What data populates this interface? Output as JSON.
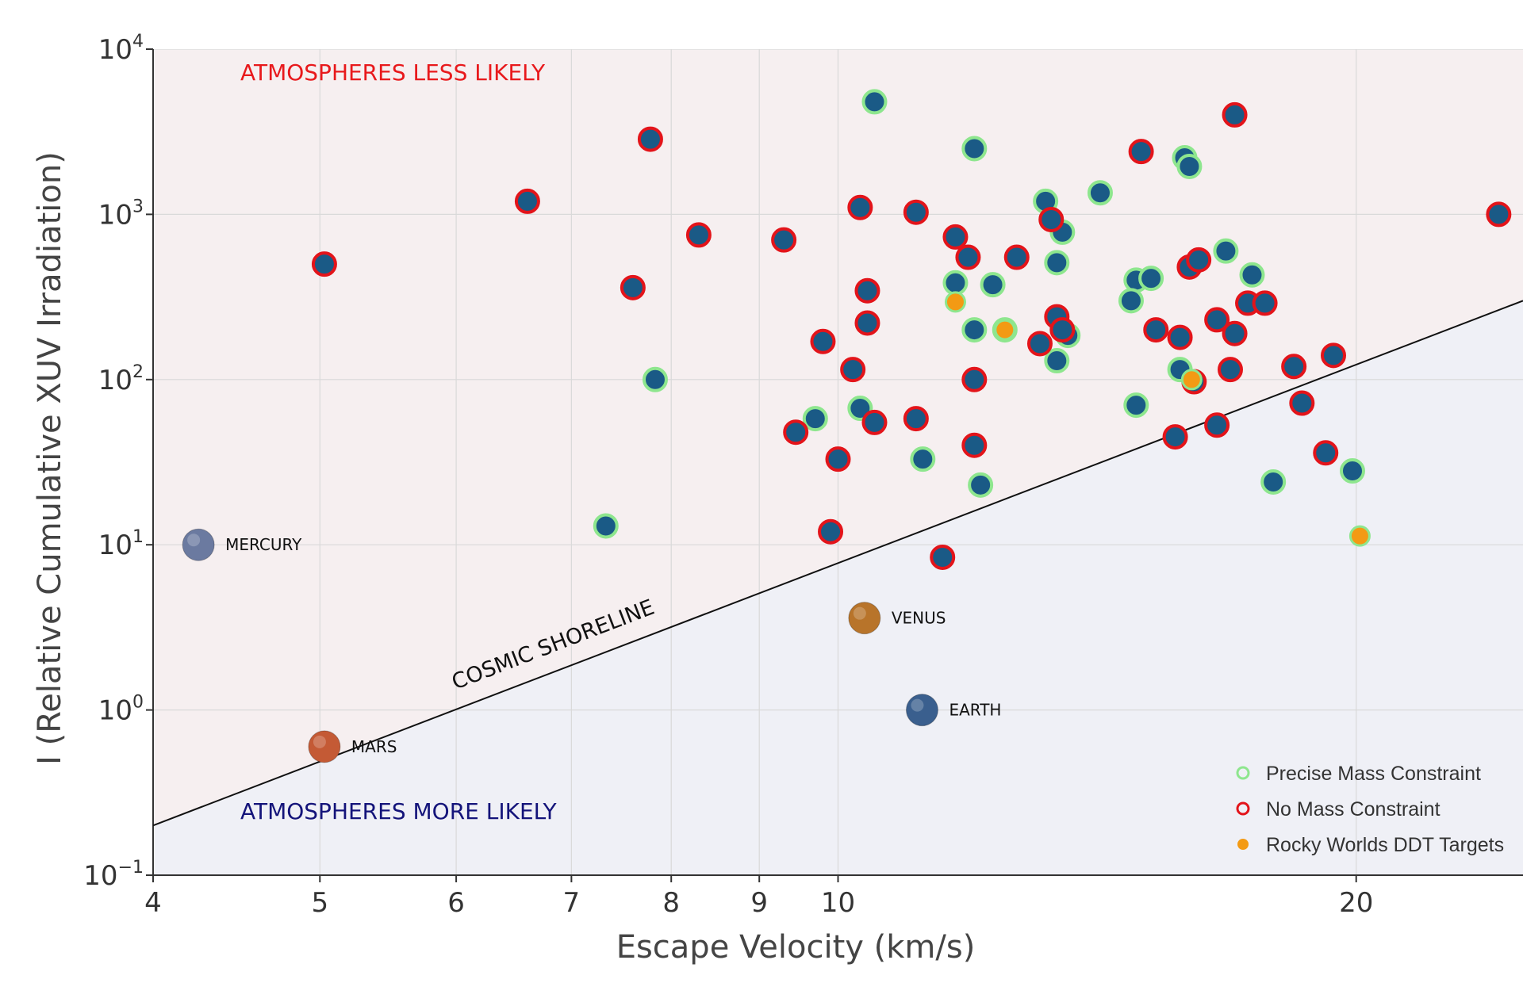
{
  "chart_data": {
    "type": "scatter",
    "xlabel": "Escape Velocity (km/s)",
    "ylabel": "I (Relative Cumulative XUV Irradiation)",
    "x_scale": "log",
    "y_scale": "log",
    "xlim": [
      4,
      25
    ],
    "ylim": [
      0.1,
      10000
    ],
    "x_ticks": [
      {
        "value": 4,
        "label": "4"
      },
      {
        "value": 5,
        "label": "5"
      },
      {
        "value": 6,
        "label": "6"
      },
      {
        "value": 7,
        "label": "7"
      },
      {
        "value": 8,
        "label": "8"
      },
      {
        "value": 9,
        "label": "9"
      },
      {
        "value": 10,
        "label": "10"
      },
      {
        "value": 20,
        "label": "20"
      }
    ],
    "y_ticks": [
      {
        "value": 0.1,
        "base": "10",
        "exp": "−1"
      },
      {
        "value": 1,
        "base": "10",
        "exp": "0"
      },
      {
        "value": 10,
        "base": "10",
        "exp": "1"
      },
      {
        "value": 100,
        "base": "10",
        "exp": "2"
      },
      {
        "value": 1000,
        "base": "10",
        "exp": "3"
      },
      {
        "value": 10000,
        "base": "10",
        "exp": "4"
      }
    ],
    "grid": true,
    "regions": {
      "upper_label": "ATMOSPHERES LESS LIKELY",
      "lower_label": "ATMOSPHERES MORE LIKELY",
      "upper_color": "#f6eff0",
      "lower_color": "#eff0f6",
      "upper_text_color": "#e8191c",
      "lower_text_color": "#14147a"
    },
    "shoreline": {
      "label": "COSMIC SHORELINE",
      "points": [
        [
          4,
          0.2
        ],
        [
          25,
          300
        ]
      ]
    },
    "solar_system": [
      {
        "name": "MERCURY",
        "x": 4.25,
        "y": 10,
        "color": "#6b7aa0"
      },
      {
        "name": "MARS",
        "x": 5.03,
        "y": 0.6,
        "color": "#c45a35"
      },
      {
        "name": "VENUS",
        "x": 10.36,
        "y": 3.6,
        "color": "#b8742a"
      },
      {
        "name": "EARTH",
        "x": 11.19,
        "y": 1.0,
        "color": "#3a5f8e"
      }
    ],
    "legend": {
      "placement": "bottom-right",
      "entries": [
        {
          "label": "Precise Mass Constraint",
          "type": "precise"
        },
        {
          "label": "No Mass Constraint",
          "type": "none"
        },
        {
          "label": "Rocky Worlds DDT Targets",
          "type": "ddt"
        }
      ]
    },
    "colors": {
      "fill": "#1a5a86",
      "precise_edge": "#8ee68e",
      "none_edge": "#e3141a",
      "ddt": "#f39a14"
    },
    "series": [
      {
        "name": "Precise Mass Constraint",
        "points": [
          [
            10.5,
            4800
          ],
          [
            12.0,
            2500
          ],
          [
            15.9,
            2200
          ],
          [
            16.0,
            1950
          ],
          [
            14.2,
            1350
          ],
          [
            13.2,
            1200
          ],
          [
            13.5,
            780
          ],
          [
            16.8,
            600
          ],
          [
            17.4,
            430
          ],
          [
            14.9,
            400
          ],
          [
            15.2,
            410
          ],
          [
            12.3,
            375
          ],
          [
            11.7,
            385
          ],
          [
            13.4,
            510
          ],
          [
            14.8,
            300
          ],
          [
            12.0,
            200
          ],
          [
            12.5,
            200
          ],
          [
            13.6,
            185
          ],
          [
            13.4,
            130
          ],
          [
            15.8,
            115
          ],
          [
            7.83,
            100
          ],
          [
            9.7,
            58
          ],
          [
            10.3,
            67
          ],
          [
            14.9,
            70
          ],
          [
            11.2,
            33
          ],
          [
            12.1,
            23
          ],
          [
            7.33,
            13
          ],
          [
            17.9,
            24
          ],
          [
            19.9,
            28
          ]
        ]
      },
      {
        "name": "No Mass Constraint",
        "points": [
          [
            17.0,
            4000
          ],
          [
            15.0,
            2400
          ],
          [
            7.78,
            2850
          ],
          [
            6.6,
            1200
          ],
          [
            5.03,
            500
          ],
          [
            8.3,
            750
          ],
          [
            9.3,
            700
          ],
          [
            10.3,
            1100
          ],
          [
            11.1,
            1030
          ],
          [
            11.7,
            730
          ],
          [
            13.3,
            930
          ],
          [
            11.9,
            550
          ],
          [
            12.7,
            550
          ],
          [
            7.6,
            360
          ],
          [
            10.4,
            345
          ],
          [
            10.4,
            220
          ],
          [
            16.0,
            480
          ],
          [
            16.2,
            530
          ],
          [
            17.3,
            290
          ],
          [
            17.7,
            290
          ],
          [
            13.4,
            240
          ],
          [
            13.5,
            200
          ],
          [
            15.3,
            200
          ],
          [
            13.1,
            165
          ],
          [
            9.8,
            170
          ],
          [
            15.8,
            180
          ],
          [
            16.6,
            230
          ],
          [
            17.0,
            190
          ],
          [
            10.2,
            115
          ],
          [
            12.0,
            100
          ],
          [
            16.1,
            97
          ],
          [
            16.9,
            115
          ],
          [
            18.4,
            120
          ],
          [
            19.4,
            140
          ],
          [
            9.45,
            48
          ],
          [
            10.5,
            55
          ],
          [
            11.1,
            58
          ],
          [
            18.6,
            72
          ],
          [
            10.0,
            33
          ],
          [
            12.0,
            40
          ],
          [
            15.7,
            45
          ],
          [
            16.6,
            53
          ],
          [
            19.2,
            36
          ],
          [
            9.9,
            12
          ],
          [
            11.5,
            8.4
          ],
          [
            24.2,
            1000
          ]
        ]
      },
      {
        "name": "Rocky Worlds DDT Targets",
        "points": [
          [
            11.7,
            295
          ],
          [
            12.5,
            200
          ],
          [
            16.05,
            100
          ],
          [
            20.1,
            11.3
          ]
        ]
      }
    ]
  }
}
